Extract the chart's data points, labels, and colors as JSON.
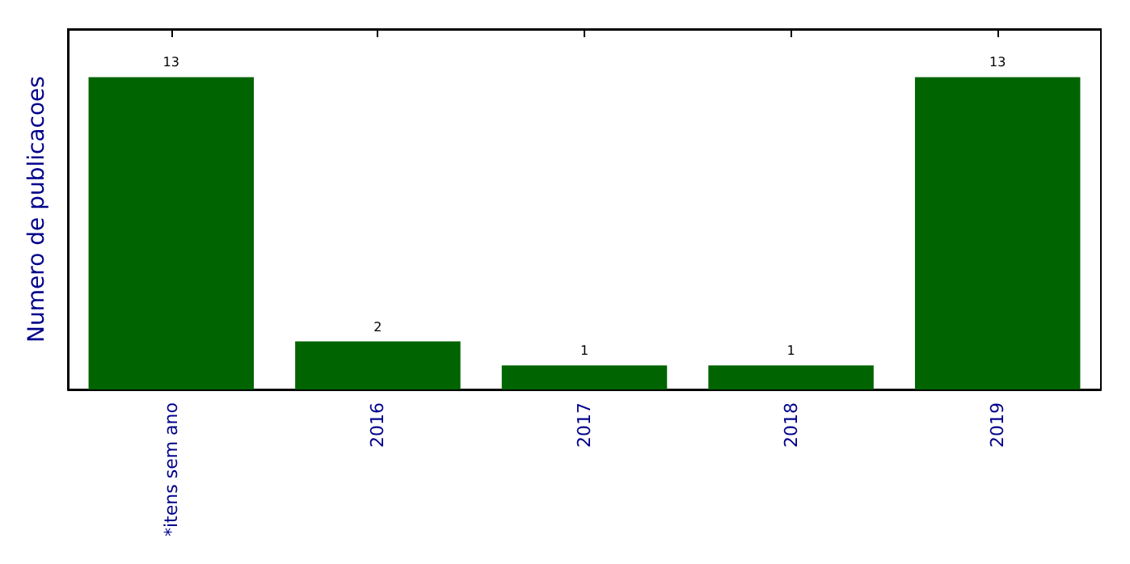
{
  "chart_data": {
    "type": "bar",
    "ylabel": "Numero de publicacoes",
    "categories": [
      "*itens sem ano",
      "2016",
      "2017",
      "2018",
      "2019"
    ],
    "values": [
      13,
      2,
      1,
      1,
      13
    ],
    "color": "#006400",
    "ylim": [
      0,
      15
    ],
    "tick_labels": "x",
    "data_labels": true
  }
}
